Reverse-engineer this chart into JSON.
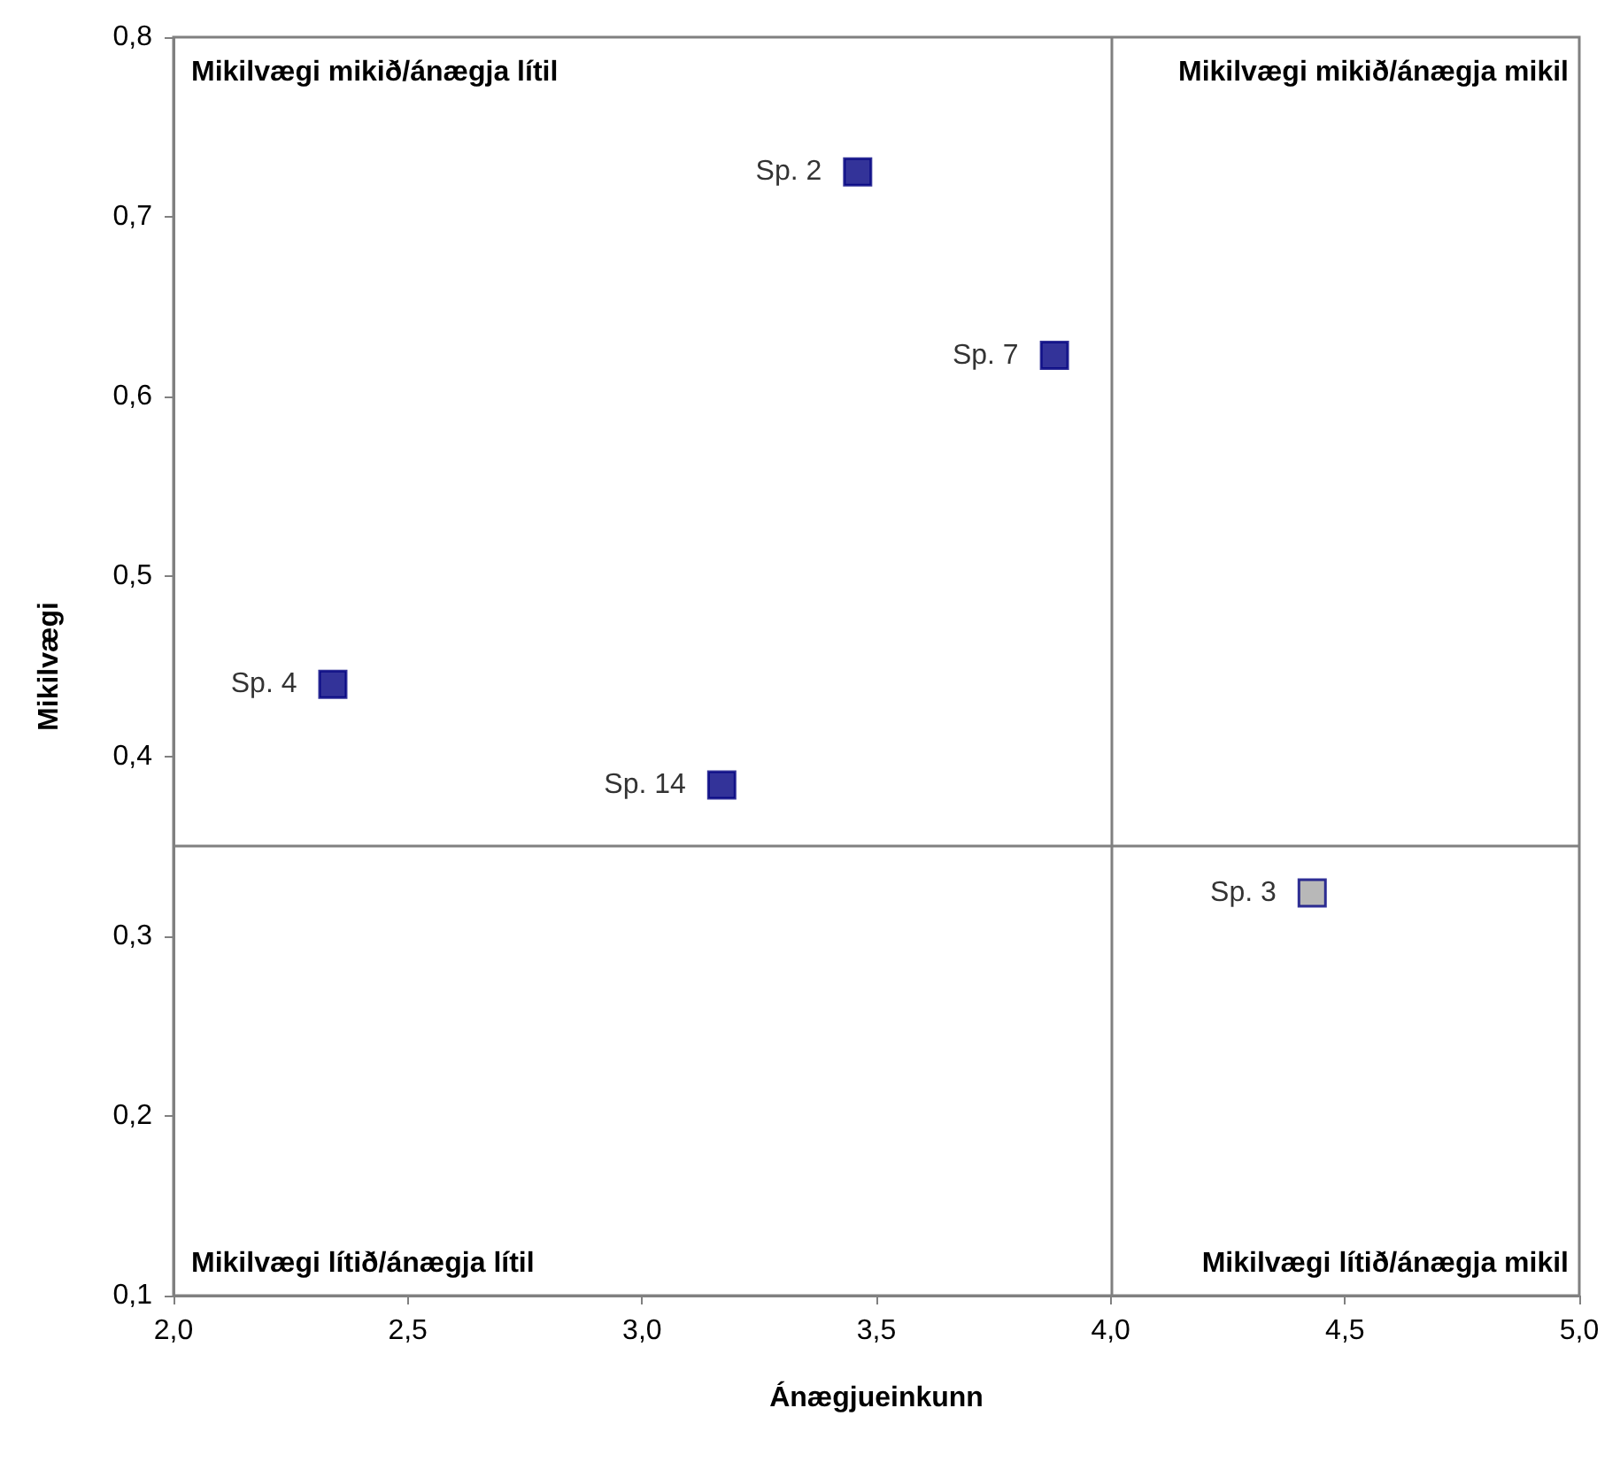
{
  "chart_data": {
    "type": "scatter",
    "xlabel": "Ánægjueinkunn",
    "ylabel": "Mikilvægi",
    "xlim": [
      2.0,
      5.0
    ],
    "ylim": [
      0.1,
      0.8
    ],
    "xticks": [
      {
        "value": 2.0,
        "label": "2,0"
      },
      {
        "value": 2.5,
        "label": "2,5"
      },
      {
        "value": 3.0,
        "label": "3,0"
      },
      {
        "value": 3.5,
        "label": "3,5"
      },
      {
        "value": 4.0,
        "label": "4,0"
      },
      {
        "value": 4.5,
        "label": "4,5"
      },
      {
        "value": 5.0,
        "label": "5,0"
      }
    ],
    "yticks": [
      {
        "value": 0.1,
        "label": "0,1"
      },
      {
        "value": 0.2,
        "label": "0,2"
      },
      {
        "value": 0.3,
        "label": "0,3"
      },
      {
        "value": 0.4,
        "label": "0,4"
      },
      {
        "value": 0.5,
        "label": "0,5"
      },
      {
        "value": 0.6,
        "label": "0,6"
      },
      {
        "value": 0.7,
        "label": "0,7"
      },
      {
        "value": 0.8,
        "label": "0,8"
      }
    ],
    "series": [
      {
        "name": "Sp. 2",
        "color": "#000080",
        "x": [
          3.46
        ],
        "values": [
          0.725
        ]
      },
      {
        "name": "Sp. 7",
        "color": "#000080",
        "x": [
          3.88
        ],
        "values": [
          0.623
        ]
      },
      {
        "name": "Sp. 4",
        "color": "#000080",
        "x": [
          2.34
        ],
        "values": [
          0.44
        ]
      },
      {
        "name": "Sp. 14",
        "color": "#000080",
        "x": [
          3.17
        ],
        "values": [
          0.384
        ]
      },
      {
        "name": "Sp. 3",
        "color": "#a6a6a6",
        "x": [
          4.43
        ],
        "values": [
          0.324
        ]
      }
    ],
    "ref_lines": [
      {
        "axis": "x",
        "value": 4.0,
        "color": "#808080"
      },
      {
        "axis": "y",
        "value": 0.35,
        "color": "#808080"
      }
    ],
    "annotations": [
      "Mikilvægi mikið/ánægja lítil",
      "Mikilvægi mikið/ánægja mikil",
      "Mikilvægi lítið/ánægja lítil",
      "Mikilvægi lítið/ánægja mikil"
    ],
    "marker": "square",
    "grid": false,
    "legend": false
  }
}
